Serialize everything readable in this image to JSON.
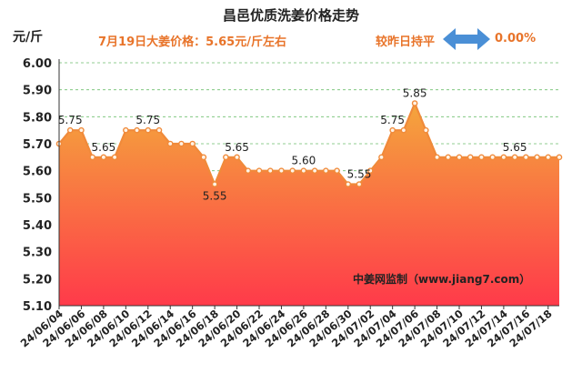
{
  "header": {
    "title": "昌邑优质洗姜价格走势",
    "unit": "元/斤",
    "price_text": "7月19日大姜价格：5.65元/斤左右",
    "compare_label": "较昨日持平",
    "change": "0.00%"
  },
  "colors": {
    "accent_text": "#e8742a",
    "line": "#f08a3a",
    "fill_top": "#f4a63c",
    "fill_bottom": "#ff3a4a",
    "arrow": "#4a8fd6"
  },
  "icons": {
    "compare_arrow": "double-arrow-icon"
  },
  "chart_data": {
    "type": "area",
    "title": "昌邑优质洗姜价格走势",
    "ylabel": "元/斤",
    "ylim": [
      5.1,
      6.0
    ],
    "ytick_step": 0.1,
    "grid": "horizontal-dashed",
    "watermark": "中姜网监制（www.jiang7.com）",
    "x": [
      "24/06/04",
      "24/06/05",
      "24/06/06",
      "24/06/07",
      "24/06/08",
      "24/06/09",
      "24/06/10",
      "24/06/11",
      "24/06/12",
      "24/06/13",
      "24/06/14",
      "24/06/15",
      "24/06/16",
      "24/06/17",
      "24/06/18",
      "24/06/19",
      "24/06/20",
      "24/06/21",
      "24/06/22",
      "24/06/23",
      "24/06/24",
      "24/06/25",
      "24/06/26",
      "24/06/27",
      "24/06/28",
      "24/06/29",
      "24/06/30",
      "24/07/01",
      "24/07/02",
      "24/07/03",
      "24/07/04",
      "24/07/05",
      "24/07/06",
      "24/07/07",
      "24/07/08",
      "24/07/09",
      "24/07/10",
      "24/07/11",
      "24/07/12",
      "24/07/13",
      "24/07/14",
      "24/07/15",
      "24/07/16",
      "24/07/17",
      "24/07/18",
      "24/07/19"
    ],
    "xtick_labels": [
      "24/06/04",
      "24/06/06",
      "24/06/08",
      "24/06/10",
      "24/06/12",
      "24/06/14",
      "24/06/16",
      "24/06/18",
      "24/06/20",
      "24/06/22",
      "24/06/24",
      "24/06/26",
      "24/06/28",
      "24/06/30",
      "24/07/02",
      "24/07/04",
      "24/07/06",
      "24/07/08",
      "24/07/10",
      "24/07/12",
      "24/07/14",
      "24/07/16",
      "24/07/18"
    ],
    "values": [
      5.7,
      5.75,
      5.75,
      5.65,
      5.65,
      5.65,
      5.75,
      5.75,
      5.75,
      5.75,
      5.7,
      5.7,
      5.7,
      5.65,
      5.55,
      5.65,
      5.65,
      5.6,
      5.6,
      5.6,
      5.6,
      5.6,
      5.6,
      5.6,
      5.6,
      5.6,
      5.55,
      5.55,
      5.6,
      5.65,
      5.75,
      5.75,
      5.85,
      5.75,
      5.65,
      5.65,
      5.65,
      5.65,
      5.65,
      5.65,
      5.65,
      5.65,
      5.65,
      5.65,
      5.65,
      5.65
    ],
    "data_labels": [
      {
        "index": 1,
        "text": "5.75"
      },
      {
        "index": 4,
        "text": "5.65"
      },
      {
        "index": 8,
        "text": "5.75"
      },
      {
        "index": 14,
        "text": "5.55"
      },
      {
        "index": 16,
        "text": "5.65"
      },
      {
        "index": 22,
        "text": "5.60"
      },
      {
        "index": 27,
        "text": "5.55"
      },
      {
        "index": 30,
        "text": "5.75"
      },
      {
        "index": 32,
        "text": "5.85"
      },
      {
        "index": 41,
        "text": "5.65"
      }
    ]
  }
}
